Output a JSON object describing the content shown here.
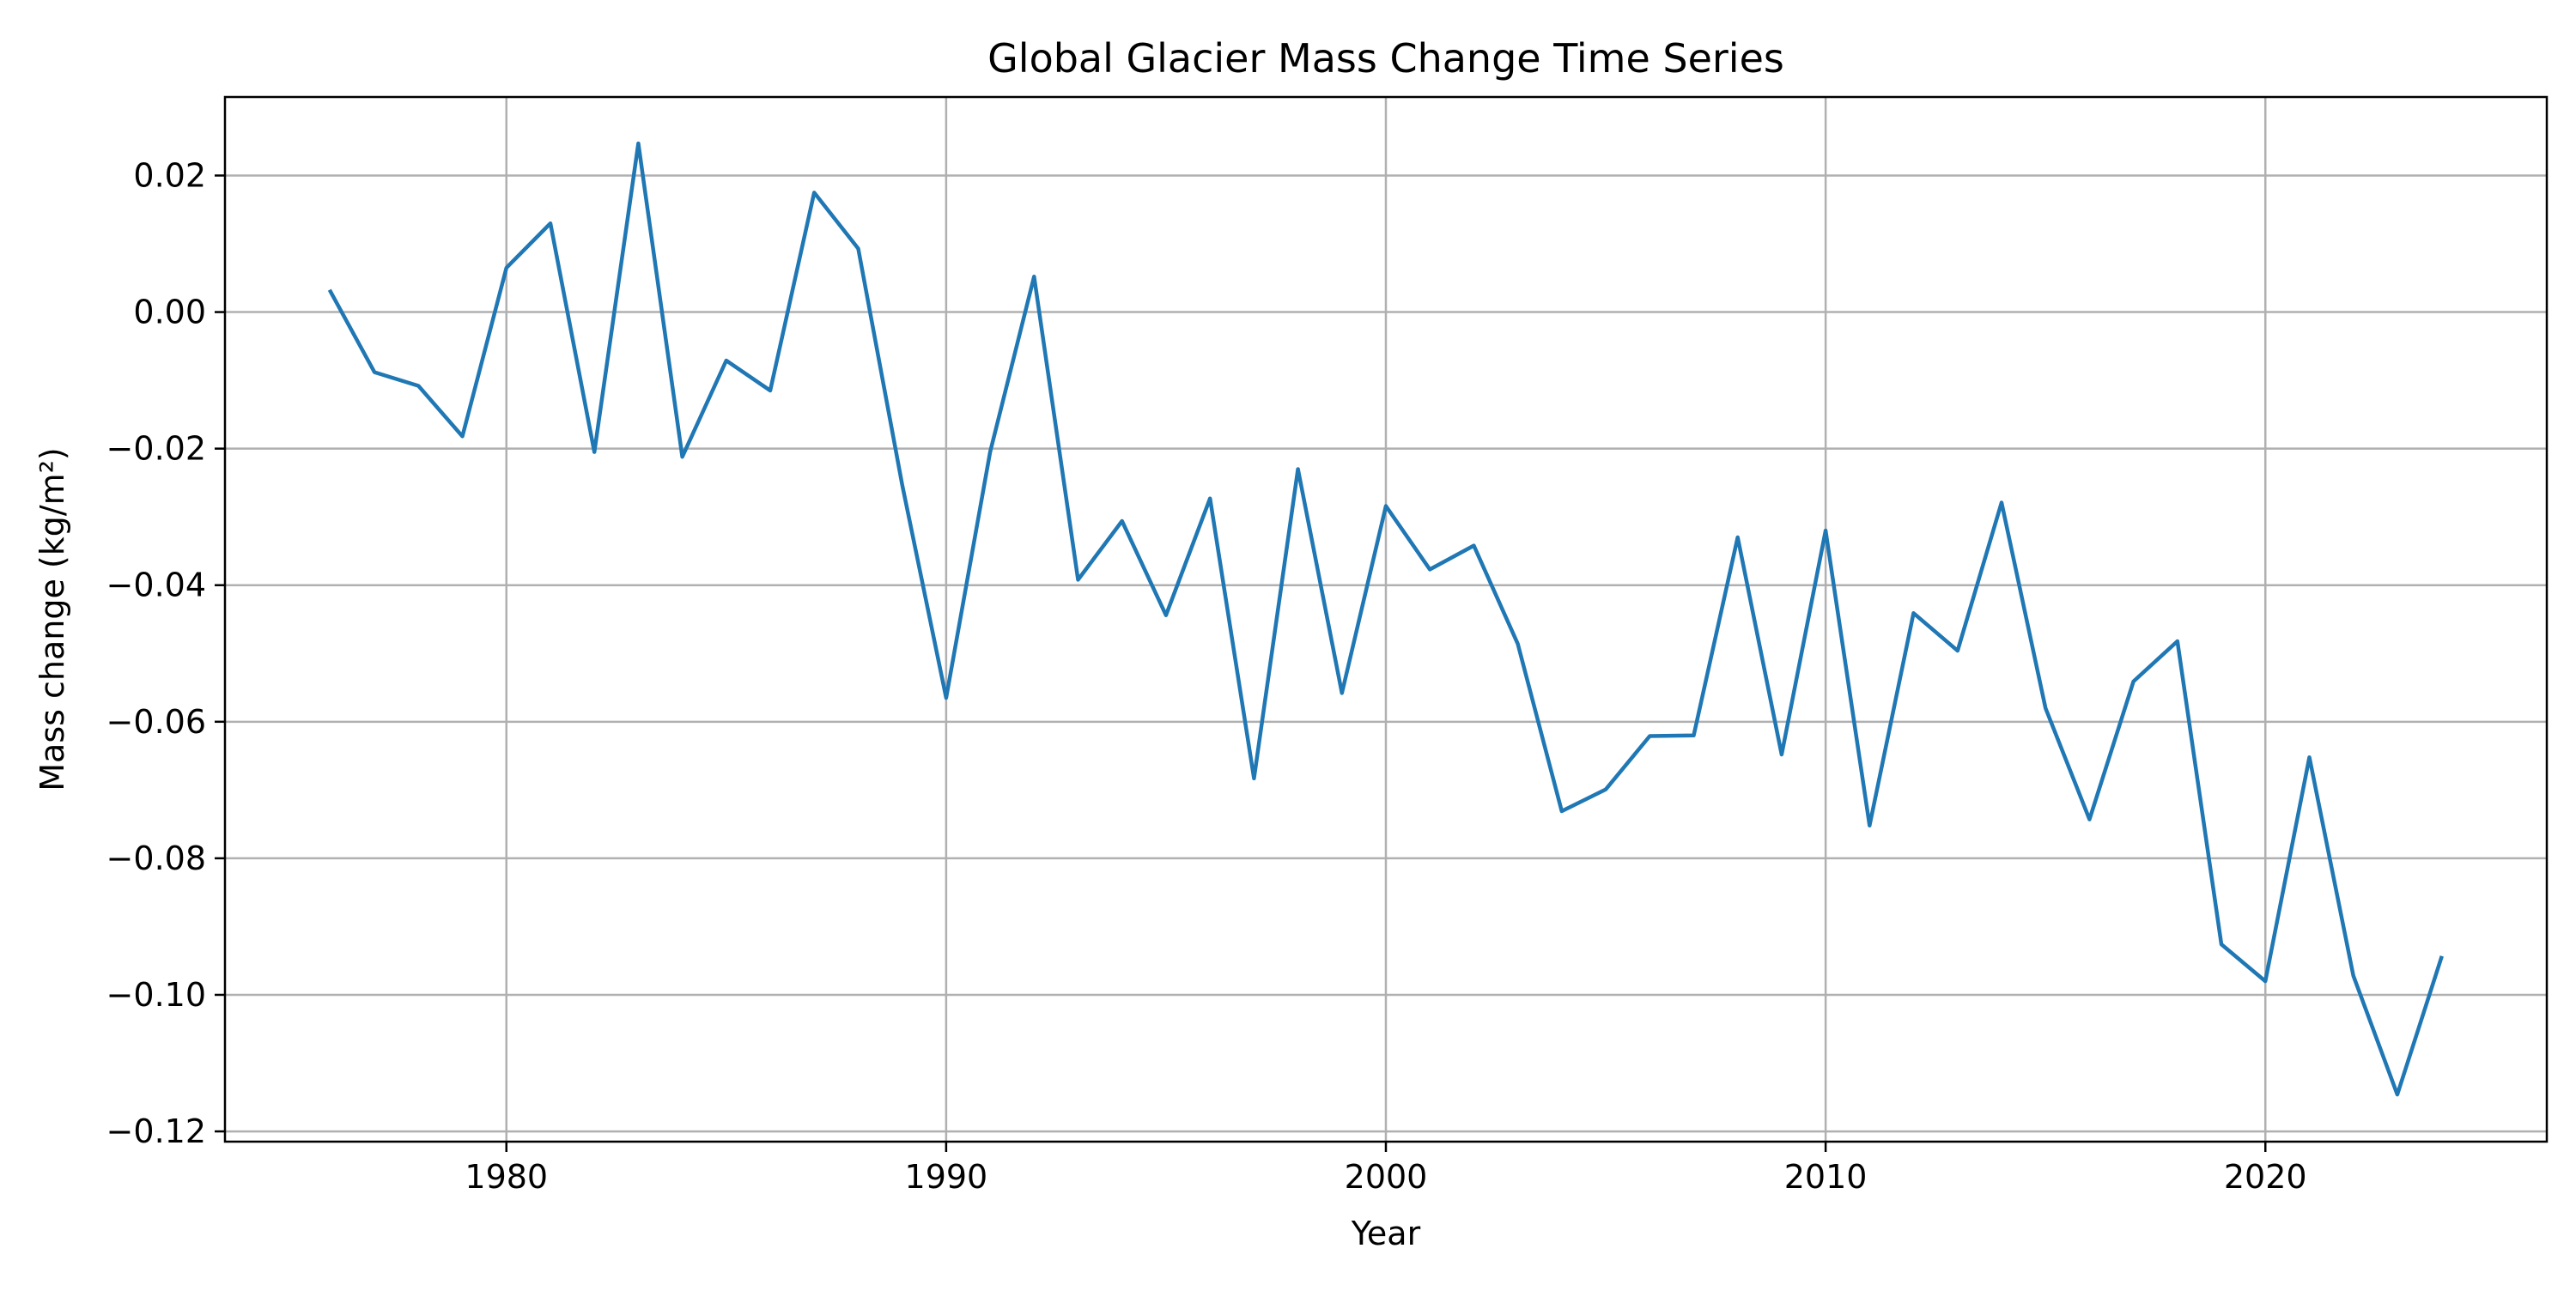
{
  "chart_data": {
    "type": "line",
    "title": "Global Glacier Mass Change Time Series",
    "xlabel": "Year",
    "ylabel": "Mass change (kg/m²)",
    "xlim": [
      1973.6,
      2026.4
    ],
    "ylim": [
      -0.1215,
      0.0315
    ],
    "x_ticks": [
      1980,
      1990,
      2000,
      2010,
      2020
    ],
    "x_tick_labels": [
      "1980",
      "1990",
      "2000",
      "2010",
      "2020"
    ],
    "y_ticks": [
      0.02,
      0.0,
      -0.02,
      -0.04,
      -0.06,
      -0.08,
      -0.1,
      -0.12
    ],
    "y_tick_labels": [
      "0.02",
      "0.00",
      "−0.02",
      "−0.04",
      "−0.06",
      "−0.08",
      "−0.10",
      "−0.12"
    ],
    "grid": true,
    "line_color": "#1f77b4",
    "x": [
      1976,
      1977,
      1978,
      1979,
      1980,
      1981,
      1982,
      1983,
      1984,
      1985,
      1986,
      1987,
      1988,
      1989,
      1990,
      1991,
      1992,
      1993,
      1994,
      1995,
      1996,
      1997,
      1998,
      1999,
      2000,
      2001,
      2002,
      2003,
      2004,
      2005,
      2006,
      2007,
      2008,
      2009,
      2010,
      2011,
      2012,
      2013,
      2014,
      2015,
      2016,
      2017,
      2018,
      2019,
      2020,
      2021,
      2022,
      2023,
      2024
    ],
    "series": [
      {
        "values": [
          0.003,
          -0.0088,
          -0.0108,
          -0.0182,
          0.0065,
          0.013,
          -0.0205,
          0.0247,
          -0.0212,
          -0.0071,
          -0.0115,
          0.0175,
          0.0093,
          -0.0253,
          -0.0565,
          -0.0205,
          0.0052,
          -0.0392,
          -0.0306,
          -0.0444,
          -0.0273,
          -0.0683,
          -0.023,
          -0.0558,
          -0.0284,
          -0.0377,
          -0.0342,
          -0.0486,
          -0.0731,
          -0.0699,
          -0.0621,
          -0.062,
          -0.033,
          -0.0648,
          -0.032,
          -0.0752,
          -0.0441,
          -0.0496,
          -0.0279,
          -0.058,
          -0.0743,
          -0.0541,
          -0.0482,
          -0.0926,
          -0.098,
          -0.0652,
          -0.0972,
          -0.1146,
          -0.0946
        ]
      }
    ]
  }
}
